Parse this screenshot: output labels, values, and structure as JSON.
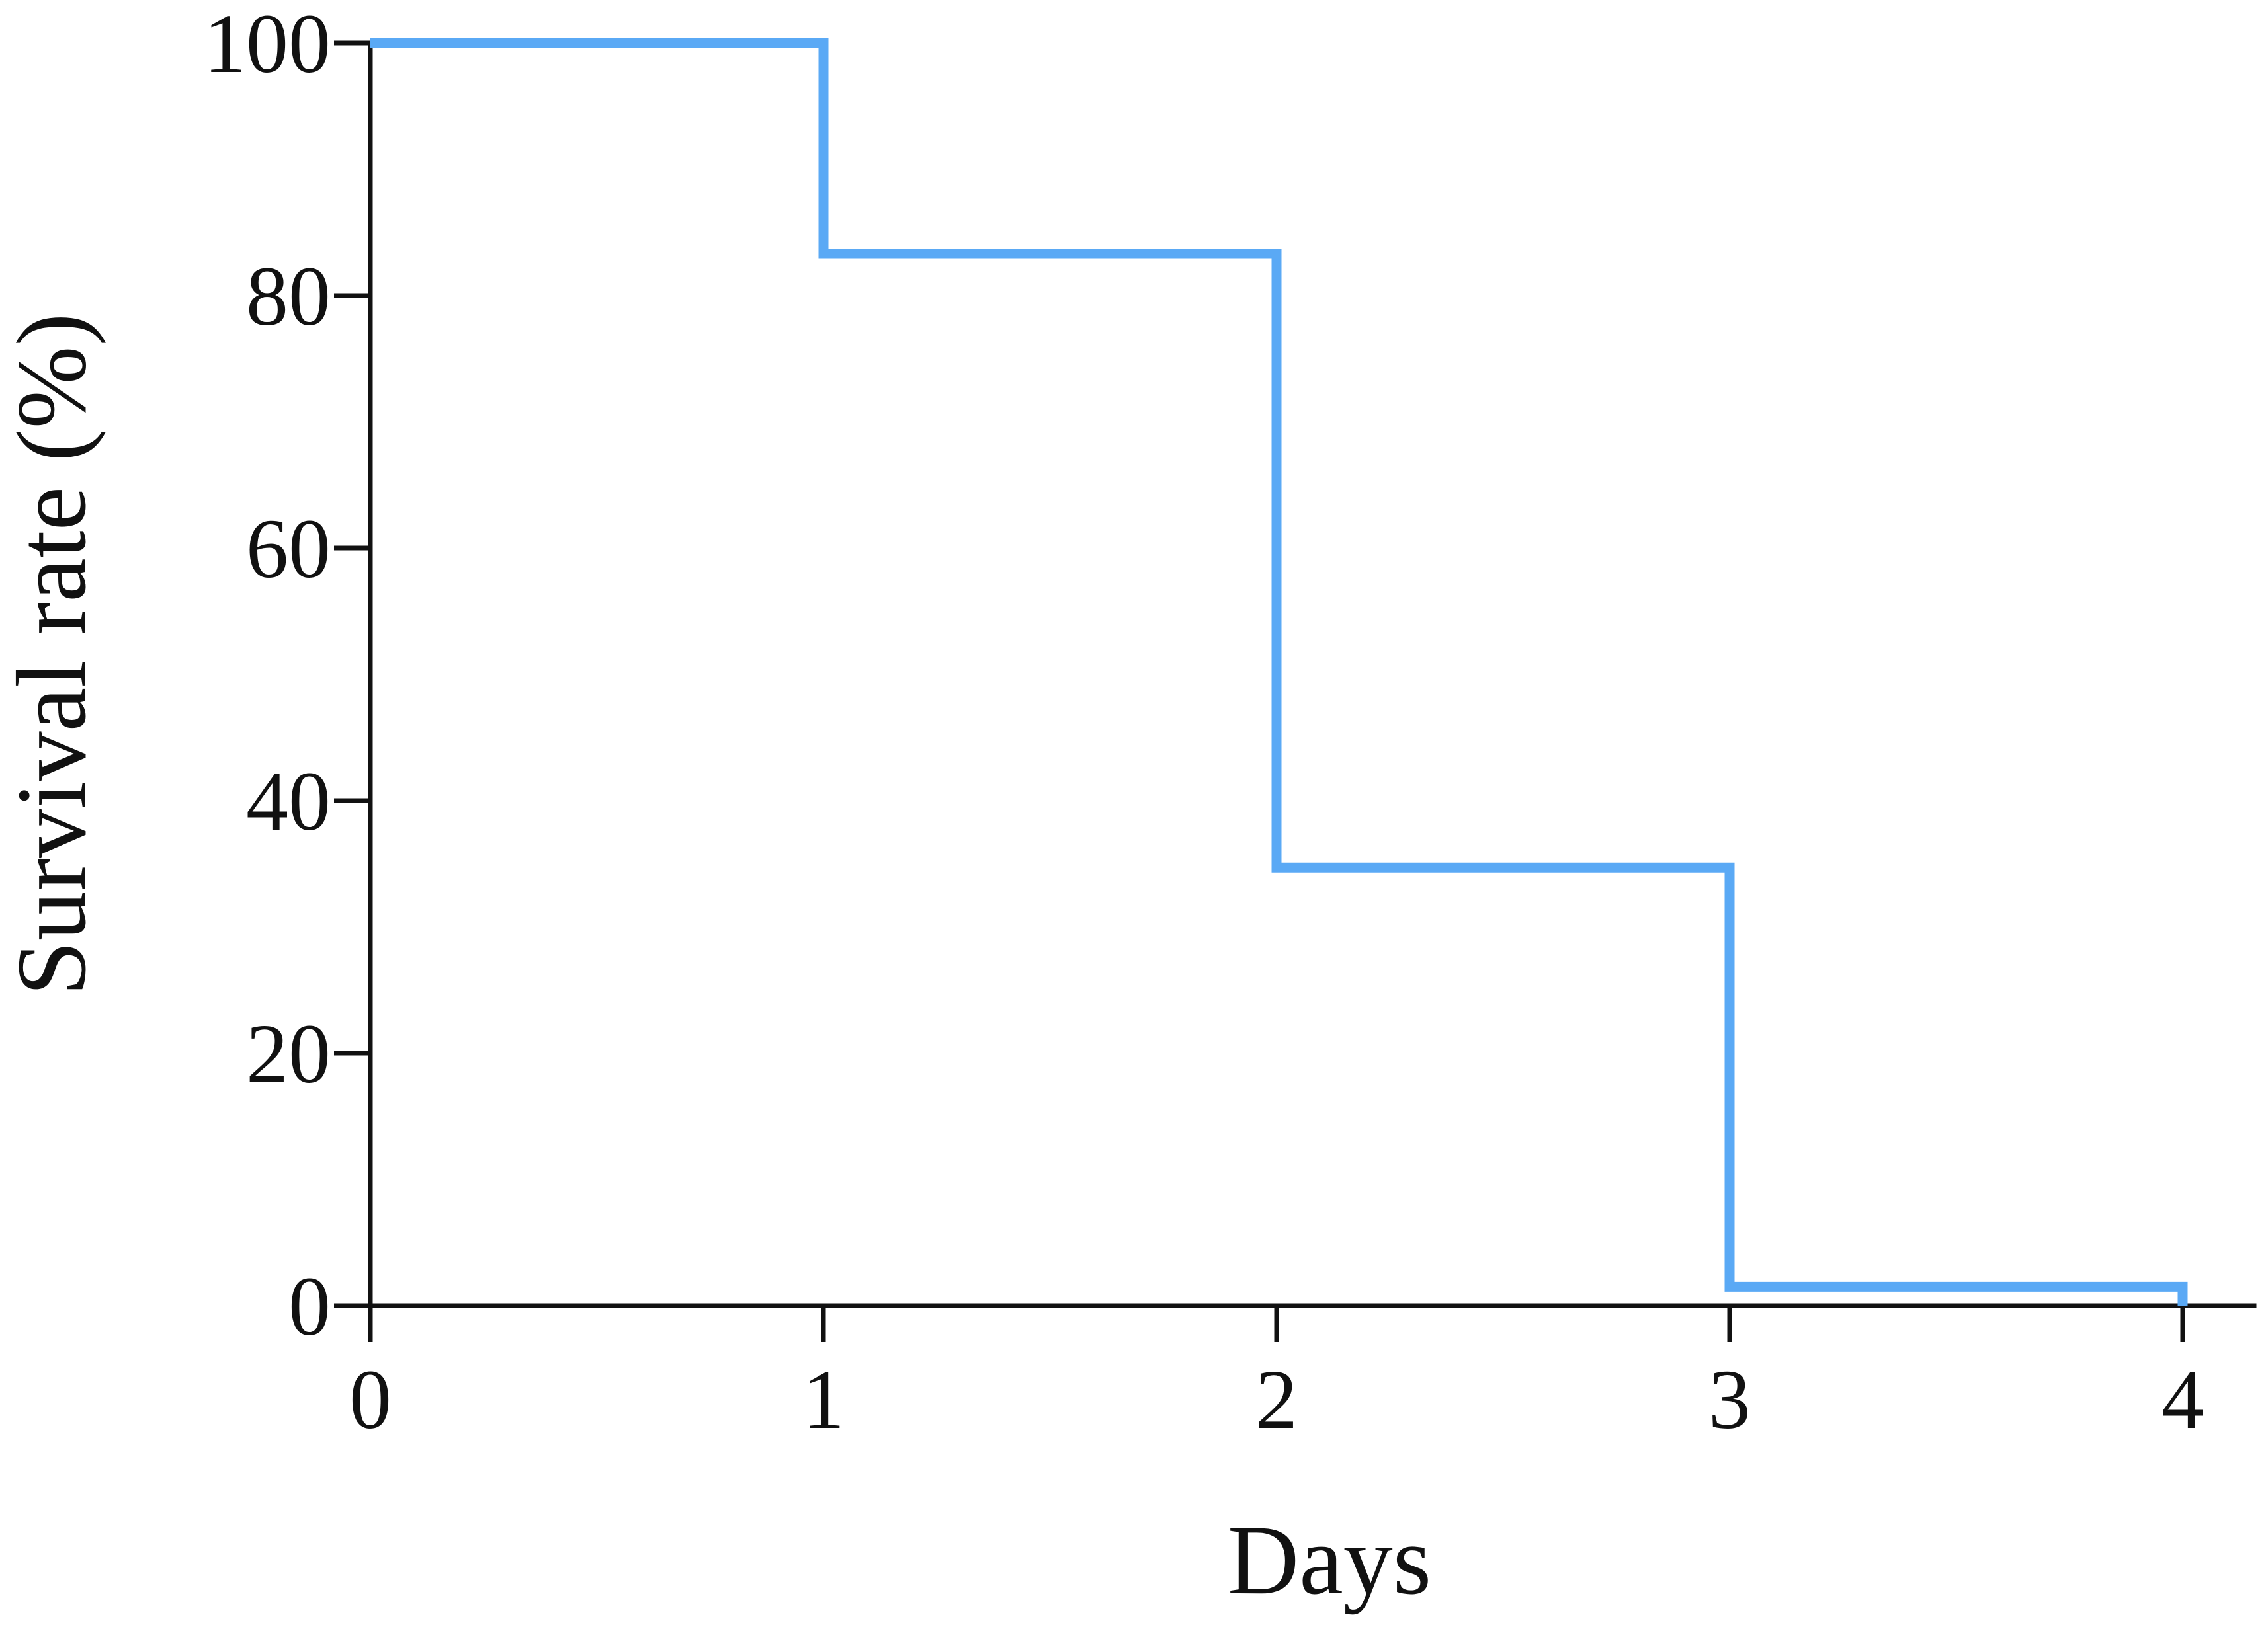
{
  "chart_data": {
    "type": "line",
    "step": true,
    "xlabel": "Days",
    "ylabel": "Survival rate (%)",
    "xlim": [
      0,
      4
    ],
    "ylim": [
      0,
      100
    ],
    "x_ticks": [
      0,
      1,
      2,
      3,
      4
    ],
    "y_ticks": [
      0,
      20,
      40,
      60,
      80,
      100
    ],
    "x_tick_labels": [
      "0",
      "1",
      "2",
      "3",
      "4"
    ],
    "y_tick_labels": [
      "0",
      "20",
      "40",
      "60",
      "80",
      "100"
    ],
    "grid": false,
    "series": [
      {
        "color": "#5aa9f5",
        "x": [
          0,
          1,
          2,
          3,
          4
        ],
        "y": [
          100,
          83.3,
          34.7,
          1.5,
          0
        ]
      }
    ]
  }
}
